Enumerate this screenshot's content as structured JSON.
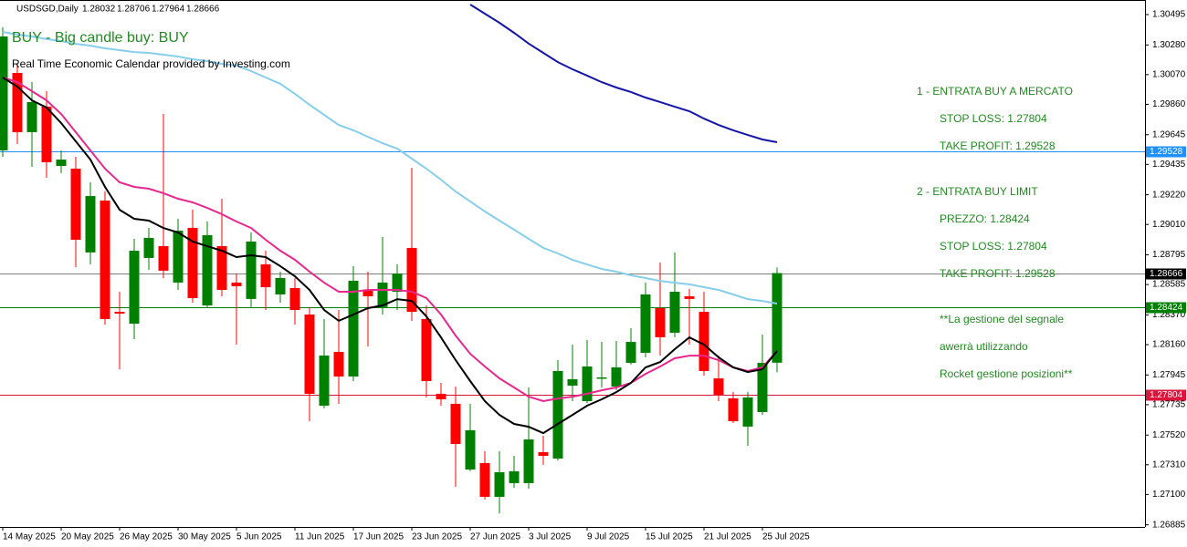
{
  "chart_data": {
    "type": "candlestick",
    "title": "USDSGD,Daily",
    "signal": "BUY - Big candle buy: BUY",
    "calendar_note": "Real Time Economic Calendar provided by Investing.com",
    "categories": [
      "14 May 2025",
      null,
      null,
      null,
      "20 May 2025",
      null,
      null,
      null,
      "26 May 2025",
      null,
      null,
      null,
      "30 May 2025",
      null,
      null,
      null,
      "5 Jun 2025",
      null,
      null,
      null,
      "11 Jun 2025",
      null,
      null,
      null,
      "17 Jun 2025",
      null,
      null,
      null,
      "23 Jun 2025",
      null,
      null,
      null,
      "27 Jun 2025",
      null,
      null,
      null,
      "3 Jul 2025",
      null,
      null,
      null,
      "9 Jul 2025",
      null,
      null,
      null,
      "15 Jul 2025",
      null,
      null,
      null,
      "21 Jul 2025",
      null,
      null,
      null,
      "25 Jul 2025",
      null
    ],
    "open": [
      1.29534,
      1.30082,
      1.29663,
      1.29844,
      1.29424,
      1.29405,
      1.28812,
      1.29179,
      1.28392,
      1.28308,
      1.28773,
      1.28857,
      1.28599,
      1.28986,
      1.28437,
      1.28857,
      1.28599,
      1.28483,
      1.28728,
      1.28515,
      1.2856,
      1.28373,
      1.27728,
      1.28108,
      1.27934,
      1.28547,
      1.28425,
      1.28534,
      1.28844,
      1.28341,
      1.27812,
      1.27741,
      1.27276,
      1.27322,
      1.27083,
      1.2718,
      1.2718,
      1.27399,
      1.27354,
      1.2787,
      1.2776,
      1.27921,
      1.27863,
      1.28031,
      1.28102,
      1.28418,
      1.28244,
      1.28502,
      1.28392,
      1.27921,
      1.2778,
      1.2758,
      1.27683,
      1.28032
    ],
    "high": [
      1.30405,
      1.30147,
      1.30018,
      1.29953,
      1.29534,
      1.29489,
      1.29308,
      1.29244,
      1.28534,
      1.28908,
      1.28986,
      1.29792,
      1.2905,
      1.29115,
      1.29031,
      1.29192,
      1.28663,
      1.28953,
      1.28824,
      1.28676,
      1.28631,
      1.28425,
      1.28341,
      1.28405,
      1.28715,
      1.28676,
      1.28921,
      1.28728,
      1.29411,
      1.28437,
      1.27889,
      1.27863,
      1.27741,
      1.27405,
      1.27405,
      1.27373,
      1.27857,
      1.27515,
      1.2805,
      1.2816,
      1.28192,
      1.28179,
      1.28186,
      1.28276,
      1.28599,
      1.28741,
      1.28812,
      1.28554,
      1.28534,
      1.28083,
      1.27825,
      1.27825,
      1.28231,
      1.28706
    ],
    "low": [
      1.29489,
      1.29579,
      1.29418,
      1.2934,
      1.29373,
      1.28708,
      1.28728,
      1.28302,
      1.27986,
      1.28199,
      1.28689,
      1.28631,
      1.28547,
      1.28457,
      1.28418,
      1.28502,
      1.2816,
      1.28425,
      1.28405,
      1.28457,
      1.28302,
      1.27618,
      1.27709,
      1.27741,
      1.27902,
      1.28147,
      1.28373,
      1.28405,
      1.28328,
      1.27786,
      1.27728,
      1.27154,
      1.27264,
      1.27064,
      1.26967,
      1.27147,
      1.27141,
      1.27309,
      1.27341,
      1.2776,
      1.27747,
      1.27857,
      1.27838,
      1.28018,
      1.2807,
      1.28083,
      1.28212,
      1.2816,
      1.27941,
      1.2776,
      1.27605,
      1.27444,
      1.27663,
      1.27964
    ],
    "close": [
      1.3034,
      1.29663,
      1.29876,
      1.2945,
      1.29469,
      1.28902,
      1.29211,
      1.28341,
      1.28379,
      1.28824,
      1.28915,
      1.28683,
      1.28966,
      1.28489,
      1.28934,
      1.28547,
      1.28573,
      1.28889,
      1.28566,
      1.28631,
      1.28405,
      1.27812,
      1.28083,
      1.27934,
      1.28612,
      1.28502,
      1.28599,
      1.28663,
      1.28392,
      1.27902,
      1.27773,
      1.27457,
      1.27554,
      1.27083,
      1.27257,
      1.27264,
      1.27489,
      1.27373,
      1.27973,
      1.27915,
      1.28005,
      1.27928,
      1.27999,
      1.28179,
      1.28515,
      1.28212,
      1.28534,
      1.28483,
      1.27973,
      1.27805,
      1.27618,
      1.27786,
      1.28031,
      1.28666
    ],
    "up_color": "#008000",
    "down_color": "#ff0000",
    "lines": [
      {
        "color": "#87ceeb",
        "values": [
          1.30372,
          1.30353,
          1.3034,
          1.30321,
          1.30308,
          1.30288,
          1.30275,
          1.30256,
          1.30243,
          1.3023,
          1.30224,
          1.30211,
          1.30198,
          1.30179,
          1.30166,
          1.30146,
          1.30134,
          1.30095,
          1.3005,
          1.30005,
          1.29934,
          1.29856,
          1.29785,
          1.29714,
          1.29676,
          1.2963,
          1.29585,
          1.29547,
          1.29476,
          1.29405,
          1.29327,
          1.29243,
          1.29173,
          1.29102,
          1.29037,
          1.28973,
          1.28908,
          1.28844,
          1.28805,
          1.2876,
          1.28727,
          1.28695,
          1.28676,
          1.2865,
          1.28631,
          1.28611,
          1.28598,
          1.28586,
          1.28566,
          1.28547,
          1.28515,
          1.28482,
          1.28469,
          1.2845
        ]
      },
      {
        "color": "#1515a8",
        "values": [
          null,
          null,
          null,
          null,
          null,
          null,
          null,
          null,
          null,
          null,
          null,
          null,
          null,
          null,
          null,
          null,
          null,
          null,
          null,
          null,
          null,
          null,
          null,
          null,
          null,
          null,
          null,
          null,
          null,
          null,
          null,
          null,
          1.30566,
          1.30501,
          1.30437,
          1.30366,
          1.3029,
          1.30224,
          1.30159,
          1.30108,
          1.30063,
          1.30017,
          1.29979,
          1.29947,
          1.29908,
          1.29876,
          1.29843,
          1.29811,
          1.29759,
          1.29714,
          1.29676,
          1.29643,
          1.29611,
          1.29592
        ]
      },
      {
        "color": "#e8288c",
        "values": [
          1.3005,
          1.30017,
          1.29953,
          1.29888,
          1.29792,
          1.29663,
          1.29534,
          1.29405,
          1.29308,
          1.29276,
          1.29263,
          1.29231,
          1.29192,
          1.29166,
          1.29127,
          1.29082,
          1.29031,
          1.28985,
          1.28902,
          1.28824,
          1.2876,
          1.28676,
          1.28598,
          1.28534,
          1.28534,
          1.28547,
          1.28547,
          1.28547,
          1.28534,
          1.28489,
          1.28373,
          1.28224,
          1.28095,
          1.28005,
          1.27921,
          1.27857,
          1.27792,
          1.2776,
          1.27779,
          1.27792,
          1.27812,
          1.27837,
          1.27857,
          1.27889,
          1.27953,
          1.28005,
          1.28063,
          1.28082,
          1.28082,
          1.2805,
          1.27999,
          1.27973,
          1.27999,
          1.28115
        ]
      },
      {
        "color": "#000000",
        "values": [
          1.3005,
          1.29985,
          1.29888,
          1.29837,
          1.29727,
          1.29598,
          1.29469,
          1.29276,
          1.29114,
          1.2905,
          1.29037,
          1.28985,
          1.28953,
          1.28889,
          1.28856,
          1.28824,
          1.28779,
          1.28792,
          1.28779,
          1.28715,
          1.28644,
          1.28547,
          1.28405,
          1.28328,
          1.28373,
          1.28418,
          1.28437,
          1.28482,
          1.28469,
          1.2836,
          1.28211,
          1.2805,
          1.27902,
          1.2776,
          1.27663,
          1.27599,
          1.27579,
          1.27534,
          1.27599,
          1.27663,
          1.27728,
          1.27773,
          1.27824,
          1.27889,
          1.27999,
          1.28037,
          1.28128,
          1.28211,
          1.2816,
          1.2807,
          1.27999,
          1.27966,
          1.27986,
          1.28115
        ]
      }
    ],
    "levels": [
      {
        "value": 1.29528,
        "color": "#1e90ff"
      },
      {
        "value": 1.28666,
        "color": "#808080",
        "label_color": "#000000"
      },
      {
        "value": 1.28424,
        "color": "#008000"
      },
      {
        "value": 1.27804,
        "color": "#dc143c"
      }
    ],
    "ylim": [
      1.2687,
      1.30598
    ],
    "yticks": [
      1.30495,
      {
        "value": 1.3028,
        "label": "1.30280"
      },
      {
        "value": 1.3007,
        "label": "1.30070"
      },
      {
        "value": 1.2986,
        "label": "1.29860"
      },
      1.29645,
      1.29435,
      {
        "value": 1.2922,
        "label": "1.29220"
      },
      {
        "value": 1.2901,
        "label": "1.29010"
      },
      1.28795,
      1.28585,
      {
        "value": 1.2837,
        "label": "1.28370"
      },
      {
        "value": 1.2816,
        "label": "1.28160"
      },
      1.27945,
      1.27735,
      {
        "value": 1.2752,
        "label": "1.27520"
      },
      {
        "value": 1.2731,
        "label": "1.27310"
      },
      {
        "value": 1.271,
        "label": "1.27100"
      },
      1.26885
    ],
    "panel": [
      {
        "text": "1 - ENTRATA BUY A MERCATO",
        "indent": false
      },
      {
        "text": "STOP LOSS: 1.27804",
        "indent": true
      },
      {
        "text": "TAKE PROFIT: 1.29528",
        "indent": true
      },
      {
        "text": "2 - ENTRATA BUY LIMIT",
        "indent": false,
        "gap": true
      },
      {
        "text": "PREZZO: 1.28424",
        "indent": true
      },
      {
        "text": "STOP LOSS: 1.27804",
        "indent": true
      },
      {
        "text": "TAKE PROFIT: 1.29528",
        "indent": true
      },
      {
        "text": "**La gestione del segnale",
        "indent": true,
        "gap": true
      },
      {
        "text": "awerrà utilizzando",
        "indent": true
      },
      {
        "text": "Rocket gestione posizioni**",
        "indent": true
      }
    ]
  }
}
